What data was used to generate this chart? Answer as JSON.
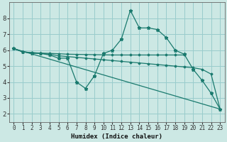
{
  "xlabel": "Humidex (Indice chaleur)",
  "bg_color": "#cce8e4",
  "grid_color": "#99cccc",
  "line_color": "#1a7a6e",
  "xlim": [
    -0.5,
    23.5
  ],
  "ylim": [
    1.5,
    9.0
  ],
  "yticks": [
    2,
    3,
    4,
    5,
    6,
    7,
    8
  ],
  "xticks": [
    0,
    1,
    2,
    3,
    4,
    5,
    6,
    7,
    8,
    9,
    10,
    11,
    12,
    13,
    14,
    15,
    16,
    17,
    18,
    19,
    20,
    21,
    22,
    23
  ],
  "series": [
    {
      "x": [
        0,
        1,
        2,
        3,
        4,
        5,
        6,
        7,
        8,
        9,
        10,
        11,
        12,
        13,
        14,
        15,
        16,
        17,
        18,
        19,
        20,
        21,
        22,
        23
      ],
      "y": [
        6.1,
        5.9,
        5.8,
        5.8,
        5.7,
        5.5,
        5.5,
        4.0,
        3.6,
        4.4,
        5.8,
        6.0,
        6.7,
        8.5,
        7.4,
        7.4,
        7.3,
        6.8,
        6.0,
        5.75,
        4.8,
        4.1,
        3.3,
        2.3
      ]
    },
    {
      "x": [
        0,
        1,
        2,
        3,
        4,
        5,
        6,
        7,
        8,
        9,
        10,
        11,
        12,
        13,
        14,
        15,
        16,
        17,
        18,
        19
      ],
      "y": [
        6.1,
        5.9,
        5.85,
        5.82,
        5.8,
        5.78,
        5.75,
        5.74,
        5.73,
        5.72,
        5.71,
        5.7,
        5.7,
        5.7,
        5.7,
        5.7,
        5.7,
        5.7,
        5.7,
        5.7
      ]
    },
    {
      "x": [
        0,
        23
      ],
      "y": [
        6.1,
        2.3
      ]
    },
    {
      "x": [
        0,
        1,
        2,
        3,
        4,
        5,
        6,
        7,
        8,
        9,
        10,
        11,
        12,
        13,
        14,
        15,
        16,
        17,
        18,
        19,
        20,
        21,
        22,
        23
      ],
      "y": [
        6.1,
        5.9,
        5.85,
        5.8,
        5.75,
        5.65,
        5.6,
        5.55,
        5.5,
        5.45,
        5.4,
        5.35,
        5.3,
        5.25,
        5.2,
        5.15,
        5.1,
        5.05,
        5.0,
        4.95,
        4.9,
        4.8,
        4.5,
        2.3
      ]
    }
  ]
}
